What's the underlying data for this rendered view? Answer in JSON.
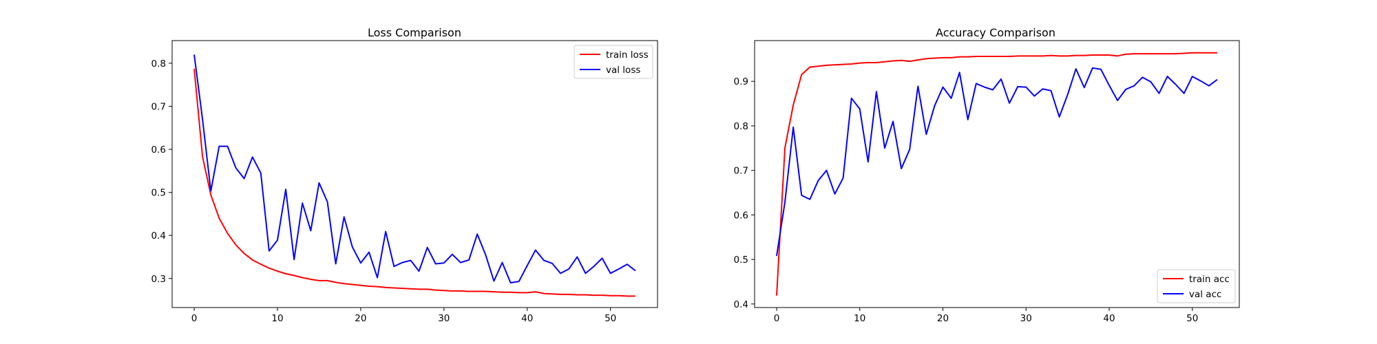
{
  "colors": {
    "train": "#ff0000",
    "val": "#0000ff"
  },
  "chart_data": [
    {
      "type": "line",
      "title": "Loss Comparison",
      "xlabel": "",
      "ylabel": "",
      "xlim": [
        -2.65,
        55.65
      ],
      "ylim": [
        0.2325,
        0.8525
      ],
      "xticks": [
        0,
        10,
        20,
        30,
        40,
        50
      ],
      "yticks": [
        0.3,
        0.4,
        0.5,
        0.6,
        0.7,
        0.8
      ],
      "grid": false,
      "legend": "top-right",
      "x": [
        0,
        1,
        2,
        3,
        4,
        5,
        6,
        7,
        8,
        9,
        10,
        11,
        12,
        13,
        14,
        15,
        16,
        17,
        18,
        19,
        20,
        21,
        22,
        23,
        24,
        25,
        26,
        27,
        28,
        29,
        30,
        31,
        32,
        33,
        34,
        35,
        36,
        37,
        38,
        39,
        40,
        41,
        42,
        43,
        44,
        45,
        46,
        47,
        48,
        49,
        50,
        51,
        52,
        53
      ],
      "series": [
        {
          "name": "train loss",
          "color": "#ff0000",
          "values": [
            0.787,
            0.583,
            0.494,
            0.44,
            0.405,
            0.378,
            0.358,
            0.343,
            0.333,
            0.324,
            0.317,
            0.311,
            0.307,
            0.302,
            0.298,
            0.295,
            0.295,
            0.291,
            0.288,
            0.286,
            0.284,
            0.282,
            0.281,
            0.279,
            0.278,
            0.277,
            0.276,
            0.275,
            0.275,
            0.273,
            0.272,
            0.271,
            0.271,
            0.27,
            0.27,
            0.27,
            0.269,
            0.268,
            0.268,
            0.267,
            0.267,
            0.269,
            0.265,
            0.264,
            0.263,
            0.263,
            0.262,
            0.262,
            0.261,
            0.261,
            0.26,
            0.26,
            0.259,
            0.259
          ]
        },
        {
          "name": "val loss",
          "color": "#0000ff",
          "values": [
            0.82,
            0.67,
            0.503,
            0.607,
            0.607,
            0.557,
            0.532,
            0.582,
            0.545,
            0.364,
            0.389,
            0.507,
            0.344,
            0.475,
            0.411,
            0.522,
            0.478,
            0.334,
            0.443,
            0.373,
            0.336,
            0.361,
            0.302,
            0.409,
            0.328,
            0.337,
            0.342,
            0.317,
            0.372,
            0.334,
            0.336,
            0.356,
            0.337,
            0.343,
            0.403,
            0.355,
            0.294,
            0.337,
            0.29,
            0.293,
            0.33,
            0.366,
            0.342,
            0.335,
            0.312,
            0.322,
            0.35,
            0.312,
            0.328,
            0.347,
            0.312,
            0.322,
            0.333,
            0.318
          ]
        }
      ]
    },
    {
      "type": "line",
      "title": "Accuracy Comparison",
      "xlabel": "",
      "ylabel": "",
      "xlim": [
        -2.65,
        55.65
      ],
      "ylim": [
        0.392,
        0.9915
      ],
      "xticks": [
        0,
        10,
        20,
        30,
        40,
        50
      ],
      "yticks": [
        0.4,
        0.5,
        0.6,
        0.7,
        0.8,
        0.9
      ],
      "grid": false,
      "legend": "bottom-right",
      "x": [
        0,
        1,
        2,
        3,
        4,
        5,
        6,
        7,
        8,
        9,
        10,
        11,
        12,
        13,
        14,
        15,
        16,
        17,
        18,
        19,
        20,
        21,
        22,
        23,
        24,
        25,
        26,
        27,
        28,
        29,
        30,
        31,
        32,
        33,
        34,
        35,
        36,
        37,
        38,
        39,
        40,
        41,
        42,
        43,
        44,
        45,
        46,
        47,
        48,
        49,
        50,
        51,
        52,
        53
      ],
      "series": [
        {
          "name": "train acc",
          "color": "#ff0000",
          "values": [
            0.419,
            0.751,
            0.847,
            0.915,
            0.932,
            0.934,
            0.936,
            0.937,
            0.938,
            0.939,
            0.941,
            0.942,
            0.942,
            0.944,
            0.946,
            0.947,
            0.945,
            0.948,
            0.951,
            0.952,
            0.953,
            0.953,
            0.955,
            0.955,
            0.956,
            0.956,
            0.956,
            0.956,
            0.956,
            0.957,
            0.957,
            0.957,
            0.957,
            0.958,
            0.957,
            0.957,
            0.958,
            0.958,
            0.959,
            0.959,
            0.959,
            0.957,
            0.961,
            0.962,
            0.962,
            0.962,
            0.962,
            0.962,
            0.962,
            0.963,
            0.964,
            0.964,
            0.964,
            0.964
          ]
        },
        {
          "name": "val acc",
          "color": "#0000ff",
          "values": [
            0.508,
            0.629,
            0.797,
            0.644,
            0.635,
            0.677,
            0.7,
            0.647,
            0.683,
            0.862,
            0.838,
            0.719,
            0.877,
            0.75,
            0.81,
            0.704,
            0.747,
            0.889,
            0.781,
            0.845,
            0.887,
            0.862,
            0.92,
            0.814,
            0.895,
            0.887,
            0.881,
            0.905,
            0.851,
            0.888,
            0.887,
            0.867,
            0.883,
            0.879,
            0.82,
            0.87,
            0.928,
            0.886,
            0.93,
            0.927,
            0.891,
            0.857,
            0.882,
            0.89,
            0.909,
            0.899,
            0.873,
            0.911,
            0.893,
            0.873,
            0.911,
            0.901,
            0.89,
            0.904
          ]
        }
      ]
    }
  ]
}
